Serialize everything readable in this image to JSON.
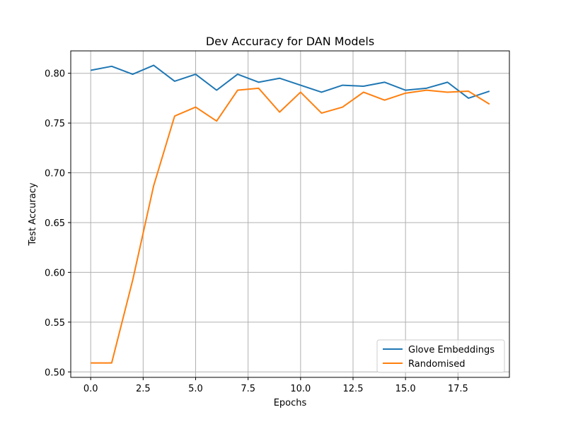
{
  "chart_data": {
    "type": "line",
    "title": "Dev Accuracy for DAN Models",
    "xlabel": "Epochs",
    "ylabel": "Test Accuracy",
    "xlim": [
      -0.95,
      19.95
    ],
    "ylim": [
      0.4945,
      0.8225
    ],
    "x_ticks": [
      0.0,
      2.5,
      5.0,
      7.5,
      10.0,
      12.5,
      15.0,
      17.5
    ],
    "x_tick_labels": [
      "0.0",
      "2.5",
      "5.0",
      "7.5",
      "10.0",
      "12.5",
      "15.0",
      "17.5"
    ],
    "y_ticks": [
      0.5,
      0.55,
      0.6,
      0.65,
      0.7,
      0.75,
      0.8
    ],
    "y_tick_labels": [
      "0.50",
      "0.55",
      "0.60",
      "0.65",
      "0.70",
      "0.75",
      "0.80"
    ],
    "grid": true,
    "legend_position": "lower-right",
    "x": [
      0,
      1,
      2,
      3,
      4,
      5,
      6,
      7,
      8,
      9,
      10,
      11,
      12,
      13,
      14,
      15,
      16,
      17,
      18,
      19
    ],
    "series": [
      {
        "name": "Glove Embeddings",
        "color": "#1f77b4",
        "values": [
          0.803,
          0.807,
          0.799,
          0.808,
          0.792,
          0.799,
          0.783,
          0.799,
          0.791,
          0.795,
          0.788,
          0.781,
          0.788,
          0.787,
          0.791,
          0.783,
          0.785,
          0.791,
          0.775,
          0.782
        ]
      },
      {
        "name": "Randomised",
        "color": "#ff7f0e",
        "values": [
          0.509,
          0.509,
          0.592,
          0.687,
          0.757,
          0.766,
          0.752,
          0.783,
          0.785,
          0.761,
          0.781,
          0.76,
          0.766,
          0.781,
          0.773,
          0.78,
          0.783,
          0.781,
          0.782,
          0.769
        ]
      }
    ]
  }
}
